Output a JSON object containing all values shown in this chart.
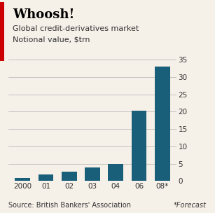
{
  "categories": [
    "2000",
    "01",
    "02",
    "03",
    "04",
    "06",
    "08*"
  ],
  "values": [
    0.9,
    1.8,
    2.7,
    4.0,
    5.0,
    20.2,
    33.0
  ],
  "bar_color": "#1a5f7a",
  "forecast_bar_color": "#1a5f7a",
  "background_color": "#f5f0e8",
  "title": "Whoosh!",
  "subtitle1": "Global credit-derivatives market",
  "subtitle2": "Notional value, $trn",
  "source_text": "Source: British Bankers' Association",
  "forecast_text": "*Forecast",
  "ylim": [
    0,
    35
  ],
  "yticks": [
    0,
    5,
    10,
    15,
    20,
    25,
    30,
    35
  ],
  "title_fontsize": 13,
  "subtitle_fontsize": 8,
  "tick_fontsize": 7.5,
  "source_fontsize": 7,
  "title_color": "#000000",
  "subtitle_color": "#333333",
  "tick_color": "#333333",
  "grid_color": "#bbbbbb",
  "left_bar_color": "#1a5f7a",
  "title_font_weight": "bold",
  "red_bar_left": true
}
